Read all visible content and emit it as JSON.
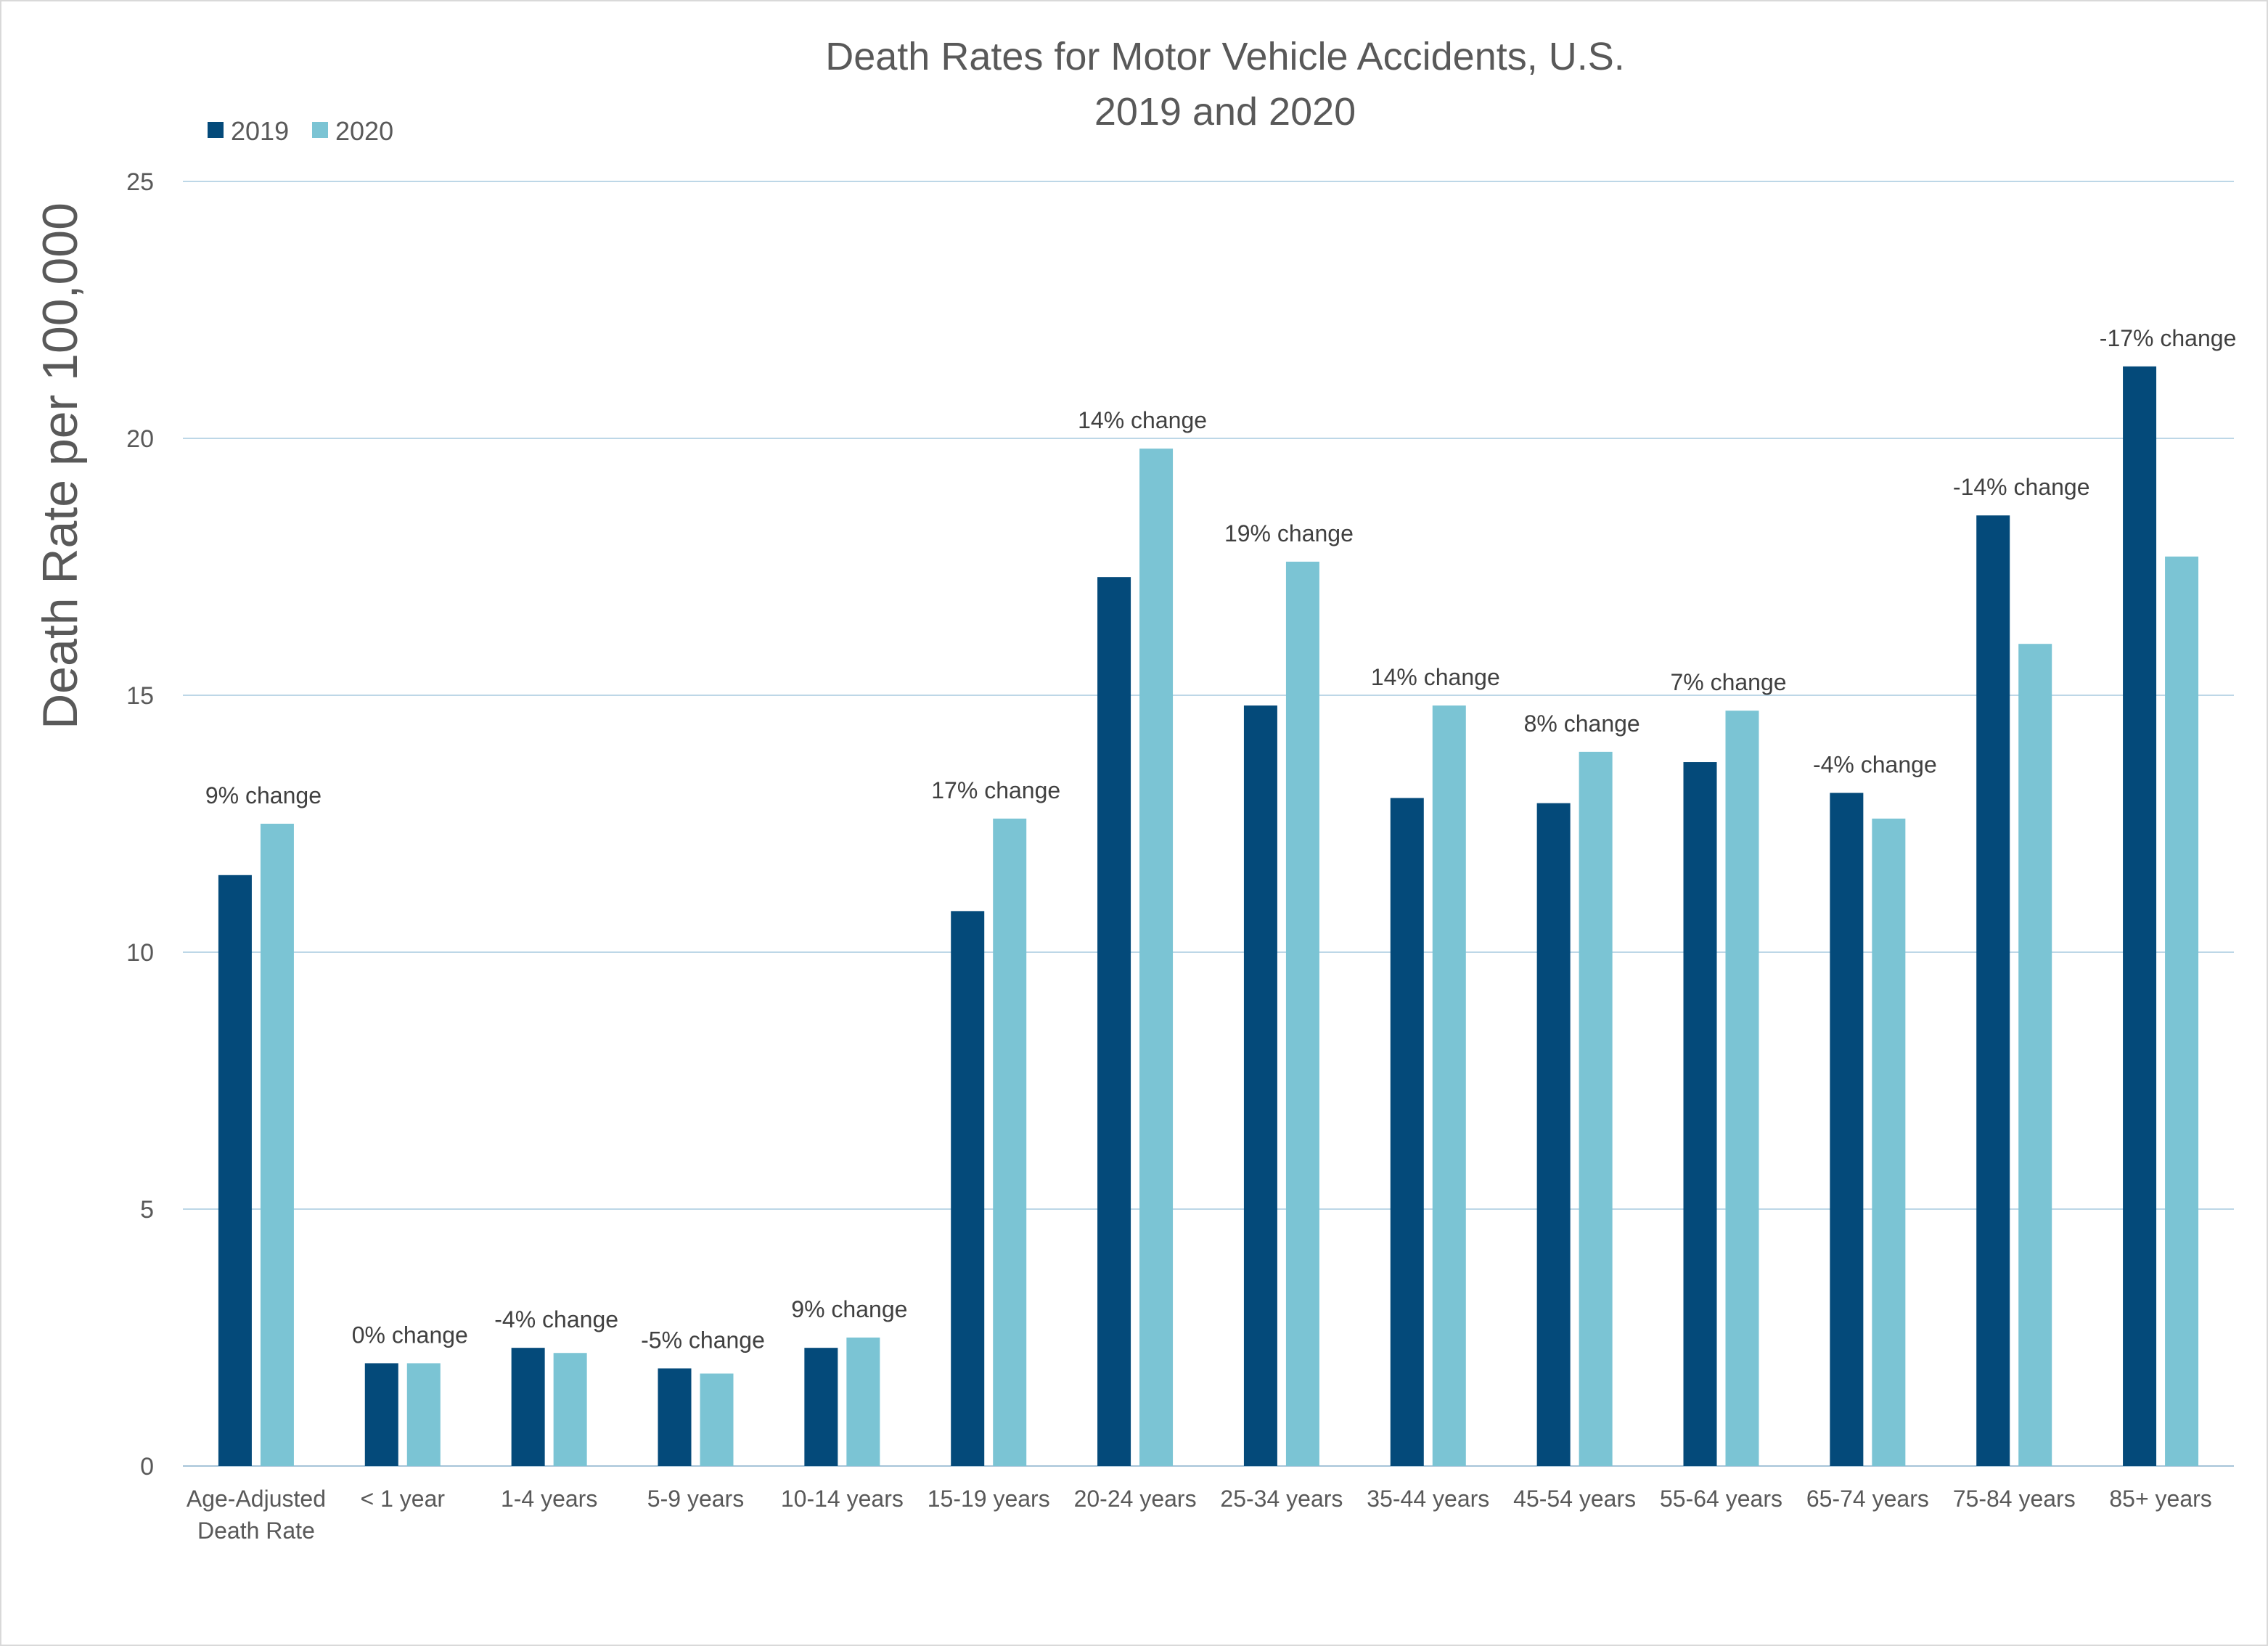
{
  "chart_data": {
    "type": "bar",
    "title": "Death Rates for Motor Vehicle Accidents, U.S.",
    "subtitle": "2019 and 2020",
    "ylabel": "Death Rate per 100,000",
    "xlabel": "",
    "ylim": [
      0,
      25
    ],
    "yticks": [
      0,
      5,
      10,
      15,
      20,
      25
    ],
    "grid": true,
    "legend_position": "top-left",
    "categories": [
      [
        "Age-Adjusted",
        "Death Rate"
      ],
      "< 1 year",
      "1-4 years",
      "5-9 years",
      "10-14 years",
      "15-19 years",
      "20-24 years",
      "25-34 years",
      "35-44 years",
      "45-54 years",
      "55-64 years",
      "65-74 years",
      "75-84 years",
      "85+ years"
    ],
    "series": [
      {
        "name": "2019",
        "color": "#044a7a",
        "values": [
          11.5,
          2.0,
          2.3,
          1.9,
          2.3,
          10.8,
          17.3,
          14.8,
          13.0,
          12.9,
          13.7,
          13.1,
          18.5,
          21.4
        ]
      },
      {
        "name": "2020",
        "color": "#7bc4d4",
        "values": [
          12.5,
          2.0,
          2.2,
          1.8,
          2.5,
          12.6,
          19.8,
          17.6,
          14.8,
          13.9,
          14.7,
          12.6,
          16.0,
          17.7
        ]
      }
    ],
    "annotations": [
      "9% change",
      "0% change",
      "-4% change",
      "-5% change",
      "9% change",
      "17% change",
      "14% change",
      "19% change",
      "14% change",
      "8% change",
      "7% change",
      "-4% change",
      "-14% change",
      "-17% change"
    ],
    "colors": {
      "gridline": "#bdd7e7",
      "text": "#595959"
    }
  }
}
